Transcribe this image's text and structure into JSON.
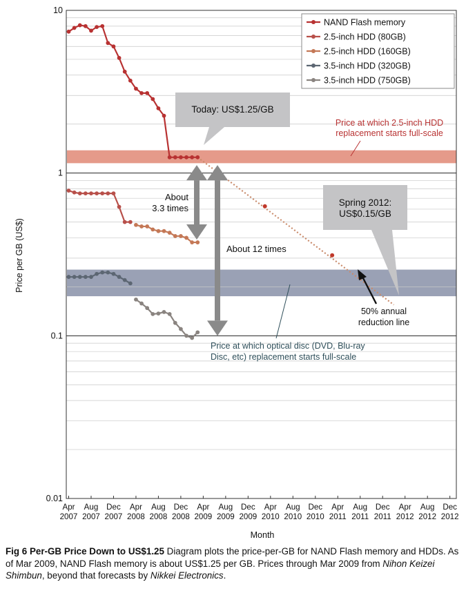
{
  "chart_data": {
    "type": "line",
    "ylabel": "Price per GB (US$)",
    "xlabel": "Month",
    "yscale": "log",
    "ylim": [
      0.01,
      10
    ],
    "y_ticks": [
      {
        "value": 10,
        "label": "10"
      },
      {
        "value": 1,
        "label": "1"
      },
      {
        "value": 0.1,
        "label": "0.1"
      },
      {
        "value": 0.01,
        "label": "0.01"
      }
    ],
    "x_ticks": [
      {
        "month": 0,
        "label": [
          "Apr",
          "2007"
        ]
      },
      {
        "month": 4,
        "label": [
          "Aug",
          "2007"
        ]
      },
      {
        "month": 8,
        "label": [
          "Dec",
          "2007"
        ]
      },
      {
        "month": 12,
        "label": [
          "Apr",
          "2008"
        ]
      },
      {
        "month": 16,
        "label": [
          "Aug",
          "2008"
        ]
      },
      {
        "month": 20,
        "label": [
          "Dec",
          "2008"
        ]
      },
      {
        "month": 24,
        "label": [
          "Apr",
          "2009"
        ]
      },
      {
        "month": 28,
        "label": [
          "Aug",
          "2009"
        ]
      },
      {
        "month": 32,
        "label": [
          "Dec",
          "2009"
        ]
      },
      {
        "month": 36,
        "label": [
          "Apr",
          "2010"
        ]
      },
      {
        "month": 40,
        "label": [
          "Aug",
          "2010"
        ]
      },
      {
        "month": 44,
        "label": [
          "Dec",
          "2010"
        ]
      },
      {
        "month": 48,
        "label": [
          "Apr",
          "2011"
        ]
      },
      {
        "month": 52,
        "label": [
          "Aug",
          "2011"
        ]
      },
      {
        "month": 56,
        "label": [
          "Dec",
          "2011"
        ]
      },
      {
        "month": 60,
        "label": [
          "Apr",
          "2012"
        ]
      },
      {
        "month": 64,
        "label": [
          "Aug",
          "2012"
        ]
      },
      {
        "month": 68,
        "label": [
          "Dec",
          "2012"
        ]
      }
    ],
    "legend_position": "top-right",
    "series": [
      {
        "name": "NAND Flash memory",
        "color": "#b83232",
        "points": [
          [
            "2007-04",
            7.4
          ],
          [
            "2007-05",
            7.8
          ],
          [
            "2007-06",
            8.1
          ],
          [
            "2007-07",
            8.0
          ],
          [
            "2007-08",
            7.5
          ],
          [
            "2007-09",
            7.9
          ],
          [
            "2007-10",
            8.0
          ],
          [
            "2007-11",
            6.3
          ],
          [
            "2007-12",
            6.0
          ],
          [
            "2008-01",
            5.1
          ],
          [
            "2008-02",
            4.2
          ],
          [
            "2008-03",
            3.7
          ],
          [
            "2008-04",
            3.3
          ],
          [
            "2008-05",
            3.1
          ],
          [
            "2008-06",
            3.1
          ],
          [
            "2008-07",
            2.85
          ],
          [
            "2008-08",
            2.5
          ],
          [
            "2008-09",
            2.25
          ],
          [
            "2008-10",
            1.25
          ],
          [
            "2008-11",
            1.25
          ],
          [
            "2008-12",
            1.25
          ],
          [
            "2009-01",
            1.25
          ],
          [
            "2009-02",
            1.25
          ],
          [
            "2009-03",
            1.25
          ]
        ]
      },
      {
        "name": "2.5-inch HDD (80GB)",
        "color": "#b8504a",
        "points": [
          [
            "2007-04",
            0.78
          ],
          [
            "2007-05",
            0.76
          ],
          [
            "2007-06",
            0.75
          ],
          [
            "2007-07",
            0.75
          ],
          [
            "2007-08",
            0.75
          ],
          [
            "2007-09",
            0.75
          ],
          [
            "2007-10",
            0.75
          ],
          [
            "2007-11",
            0.75
          ],
          [
            "2007-12",
            0.75
          ],
          [
            "2008-01",
            0.62
          ],
          [
            "2008-02",
            0.5
          ],
          [
            "2008-03",
            0.5
          ]
        ]
      },
      {
        "name": "2.5-inch HDD (160GB)",
        "color": "#c47856",
        "points": [
          [
            "2008-04",
            0.48
          ],
          [
            "2008-05",
            0.47
          ],
          [
            "2008-06",
            0.47
          ],
          [
            "2008-07",
            0.45
          ],
          [
            "2008-08",
            0.44
          ],
          [
            "2008-09",
            0.44
          ],
          [
            "2008-10",
            0.43
          ],
          [
            "2008-11",
            0.41
          ],
          [
            "2008-12",
            0.41
          ],
          [
            "2009-01",
            0.4
          ],
          [
            "2009-02",
            0.375
          ],
          [
            "2009-03",
            0.375
          ]
        ]
      },
      {
        "name": "3.5-inch HDD (320GB)",
        "color": "#5c6672",
        "points": [
          [
            "2007-04",
            0.23
          ],
          [
            "2007-05",
            0.23
          ],
          [
            "2007-06",
            0.23
          ],
          [
            "2007-07",
            0.23
          ],
          [
            "2007-08",
            0.23
          ],
          [
            "2007-09",
            0.24
          ],
          [
            "2007-10",
            0.245
          ],
          [
            "2007-11",
            0.245
          ],
          [
            "2007-12",
            0.24
          ],
          [
            "2008-01",
            0.23
          ],
          [
            "2008-02",
            0.22
          ],
          [
            "2008-03",
            0.21
          ]
        ]
      },
      {
        "name": "3.5-inch HDD (750GB)",
        "color": "#8a8480",
        "points": [
          [
            "2008-04",
            0.167
          ],
          [
            "2008-05",
            0.158
          ],
          [
            "2008-06",
            0.148
          ],
          [
            "2008-07",
            0.136
          ],
          [
            "2008-08",
            0.137
          ],
          [
            "2008-09",
            0.14
          ],
          [
            "2008-10",
            0.136
          ],
          [
            "2008-11",
            0.12
          ],
          [
            "2008-12",
            0.11
          ],
          [
            "2009-01",
            0.1
          ],
          [
            "2009-02",
            0.097
          ],
          [
            "2009-03",
            0.105
          ]
        ]
      }
    ],
    "forecast": {
      "name": "50% annual reduction line",
      "from": [
        "2009-03",
        1.25
      ],
      "to": [
        "2012-02",
        0.155
      ],
      "markers": [
        [
          "2010-03",
          0.625
        ],
        [
          "2011-03",
          0.3125
        ]
      ]
    },
    "bands": [
      {
        "name": "2.5-inch HDD replacement",
        "y_range": [
          1.15,
          1.38
        ],
        "color": "#e59a8a",
        "label": [
          "Price at which 2.5-inch HDD",
          "replacement starts full-scale"
        ],
        "label_color": "#b83232"
      },
      {
        "name": "optical disc replacement",
        "y_range": [
          0.175,
          0.255
        ],
        "color": "#9aa1b5",
        "label": [
          "Price at which optical disc (DVD, Blu-ray",
          "Disc, etc) replacement starts full-scale"
        ],
        "label_color": "#2f4f5a"
      }
    ],
    "annotations": {
      "today": "Today: US$1.25/GB",
      "spring": [
        "Spring 2012:",
        "US$0.15/GB"
      ],
      "about_33": [
        "About",
        "3.3 times"
      ],
      "about_12": "About 12 times",
      "reduction": [
        "50% annual",
        "reduction line"
      ]
    }
  },
  "caption": {
    "lead": "Fig 6  Per-GB Price Down to US$1.25",
    "text_1": "  Diagram plots the price-per-GB for NAND Flash memory and HDDs. As of Mar 2009, NAND Flash memory is about US$1.25 per GB. Prices through Mar 2009 from ",
    "source_1": "Nihon Keizei Shimbun",
    "text_2": ", beyond that forecasts by ",
    "source_2": "Nikkei Electronics",
    "text_3": "."
  }
}
